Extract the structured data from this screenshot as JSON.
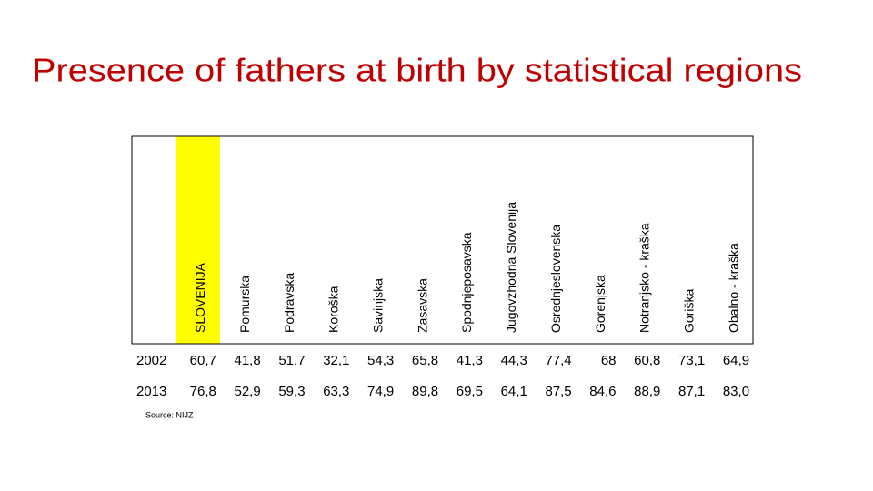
{
  "title": "Presence of fathers at birth by statistical regions",
  "table": {
    "columns": [
      "SLOVENIJA",
      "Pomurska",
      "Podravska",
      "Koroška",
      "Savinjska",
      "Zasavska",
      "Spodnjeposavska",
      "Jugovzhodna Slovenija",
      "Osrednjeslovenska",
      "Gorenjska",
      "Notranjsko - kraška",
      "Goriška",
      "Obalno - kraška"
    ],
    "rows": [
      {
        "year": "2002",
        "values": [
          "60,7",
          "41,8",
          "51,7",
          "32,1",
          "54,3",
          "65,8",
          "41,3",
          "44,3",
          "77,4",
          "68",
          "60,8",
          "73,1",
          "64,9"
        ]
      },
      {
        "year": "2013",
        "values": [
          "76,8",
          "52,9",
          "59,3",
          "63,3",
          "74,9",
          "89,8",
          "69,5",
          "64,1",
          "87,5",
          "84,6",
          "88,9",
          "87,1",
          "83,0"
        ]
      }
    ]
  },
  "source": "Source: NIJZ"
}
